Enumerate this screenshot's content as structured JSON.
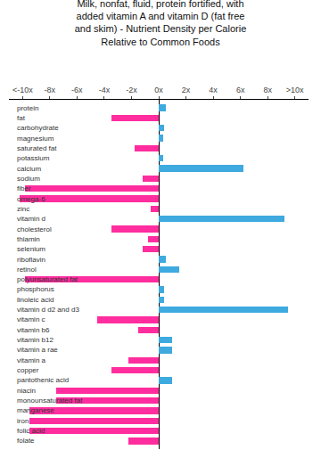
{
  "chart_data": {
    "type": "bar",
    "orientation": "horizontal",
    "title": "Milk, nonfat, fluid, protein fortified, with\nadded vitamin A and vitamin D (fat free\nand skim) - Nutrient Density per Calorie\nRelative to Common Foods",
    "categories": [
      "protein",
      "fat",
      "carbohydrate",
      "magnesium",
      "saturated fat",
      "potassium",
      "calcium",
      "sodium",
      "fiber",
      "omega-6",
      "zinc",
      "vitamin d",
      "cholesterol",
      "thiamin",
      "selenium",
      "riboflavin",
      "retinol",
      "polyunsaturated fat",
      "phosphorus",
      "linoleic acid",
      "vitamin d d2 and d3",
      "vitamin c",
      "vitamin b6",
      "vitamin b12",
      "vitamin a rae",
      "vitamin a",
      "copper",
      "pantothenic acid",
      "niacin",
      "monounsaturated fat",
      "manganese",
      "iron",
      "folic acid",
      "folate"
    ],
    "values": [
      0.5,
      -3.5,
      0.4,
      0.3,
      -1.8,
      0.3,
      6.2,
      -1.2,
      -9.8,
      -10.2,
      -0.6,
      9.2,
      -3.5,
      -0.8,
      -1.2,
      0.5,
      1.5,
      -9.8,
      0.4,
      0.4,
      9.5,
      -4.5,
      -1.5,
      1.0,
      1.0,
      -2.2,
      -3.5,
      1.0,
      -7.5,
      -7.5,
      -9.5,
      -9.5,
      -9.5,
      -2.2
    ],
    "colors": [
      "#3eaadf",
      "#ff2d9e",
      "#3eaadf",
      "#3eaadf",
      "#ff2d9e",
      "#3eaadf",
      "#3eaadf",
      "#ff2d9e",
      "#ff2d9e",
      "#ff2d9e",
      "#ff2d9e",
      "#3eaadf",
      "#ff2d9e",
      "#ff2d9e",
      "#ff2d9e",
      "#3eaadf",
      "#3eaadf",
      "#ff2d9e",
      "#3eaadf",
      "#3eaadf",
      "#3eaadf",
      "#ff2d9e",
      "#ff2d9e",
      "#3eaadf",
      "#3eaadf",
      "#ff2d9e",
      "#ff2d9e",
      "#3eaadf",
      "#ff2d9e",
      "#ff2d9e",
      "#ff2d9e",
      "#ff2d9e",
      "#ff2d9e",
      "#ff2d9e"
    ],
    "xlim": [
      -11,
      11
    ],
    "xticks": [
      {
        "value": -10,
        "label": "<-10x"
      },
      {
        "value": -8,
        "label": "-8x"
      },
      {
        "value": -6,
        "label": "-6x"
      },
      {
        "value": -4,
        "label": "-4x"
      },
      {
        "value": -2,
        "label": "-2x"
      },
      {
        "value": 0,
        "label": "0x"
      },
      {
        "value": 2,
        "label": "2x"
      },
      {
        "value": 4,
        "label": "4x"
      },
      {
        "value": 6,
        "label": "6x"
      },
      {
        "value": 8,
        "label": "8x"
      },
      {
        "value": 10,
        "label": ">10x"
      }
    ],
    "grid": false,
    "tick_labels": "x"
  }
}
